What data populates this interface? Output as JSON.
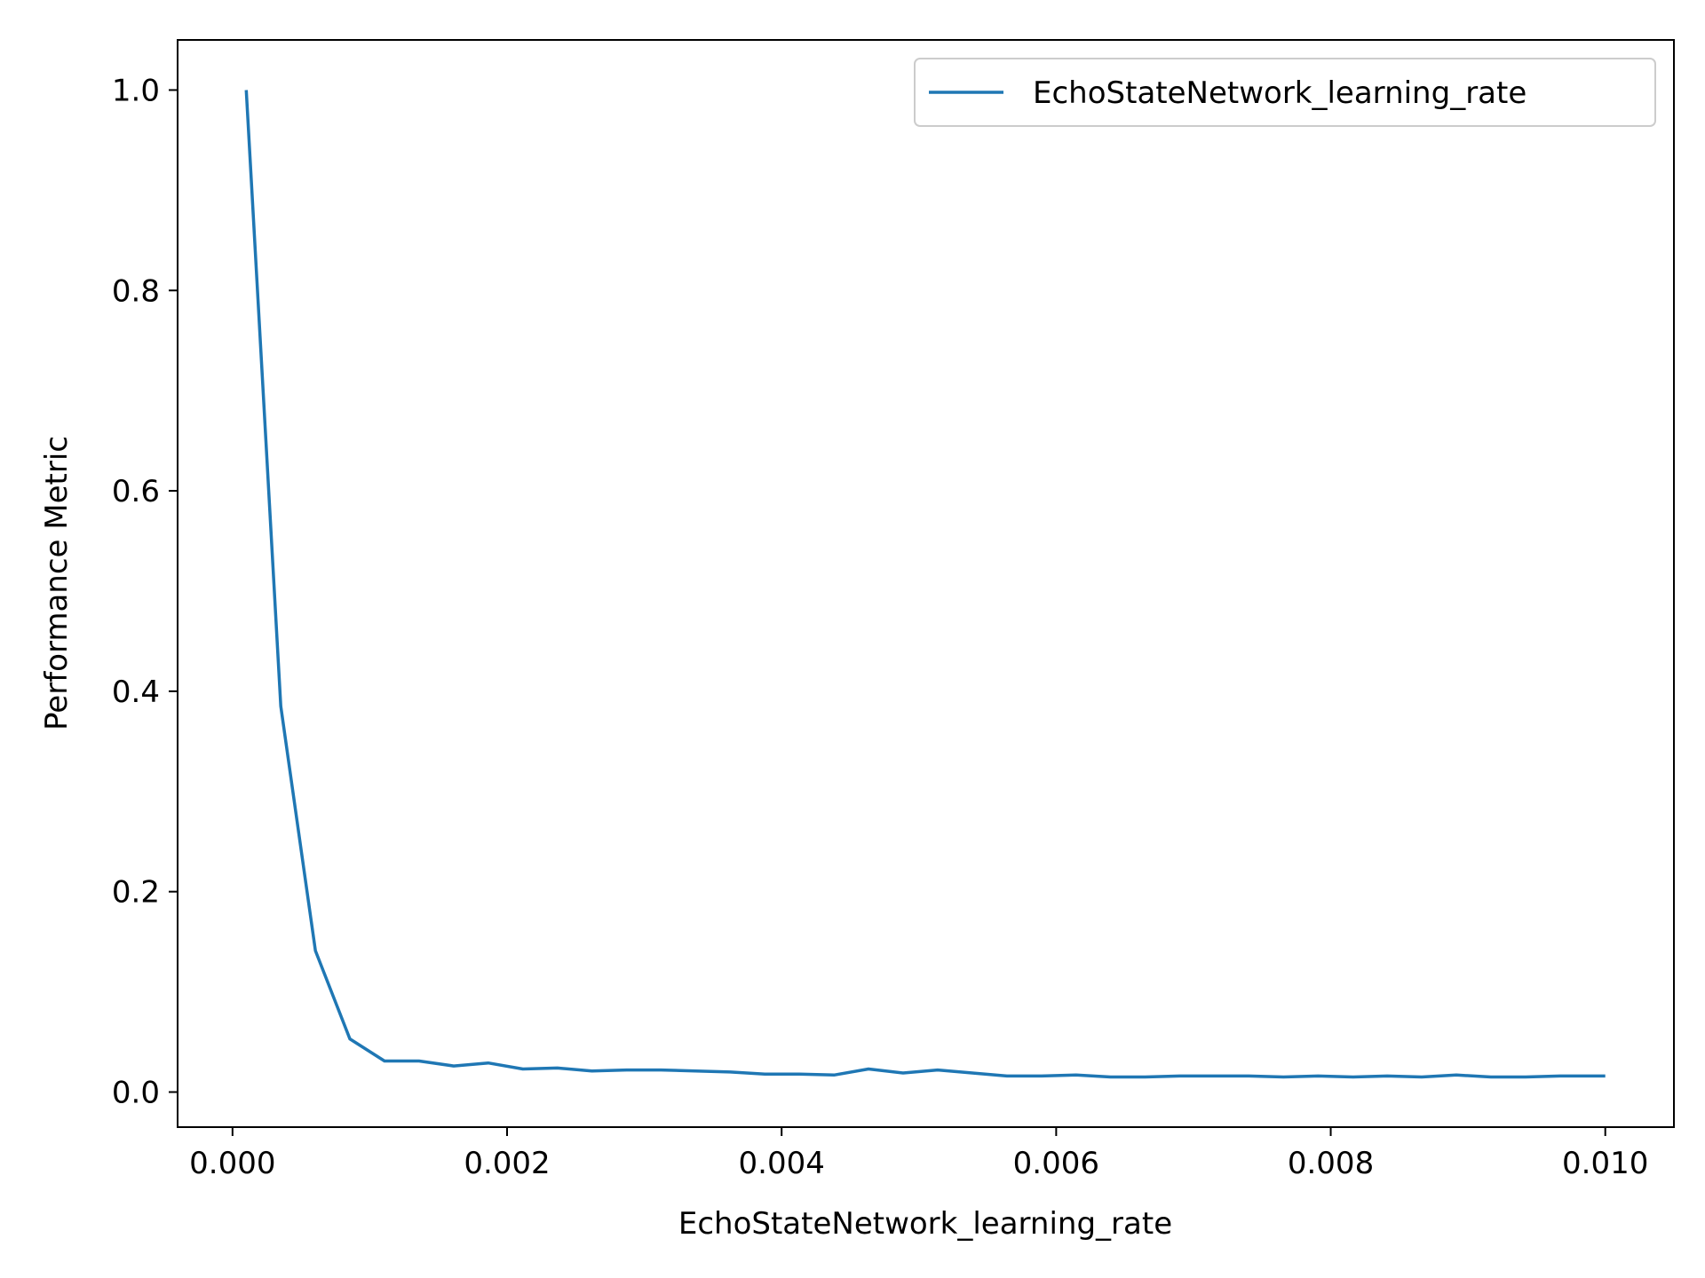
{
  "chart_data": {
    "type": "line",
    "title": "",
    "xlabel": "EchoStateNetwork_learning_rate",
    "ylabel": "Performance Metric",
    "xlim": [
      -0.0004,
      0.0105
    ],
    "ylim": [
      -0.035,
      1.05
    ],
    "xticks": [
      0.0,
      0.002,
      0.004,
      0.006,
      0.008,
      0.01
    ],
    "xtick_labels": [
      "0.000",
      "0.002",
      "0.004",
      "0.006",
      "0.008",
      "0.010"
    ],
    "yticks": [
      0.0,
      0.2,
      0.4,
      0.6,
      0.8,
      1.0
    ],
    "ytick_labels": [
      "0.0",
      "0.2",
      "0.4",
      "0.6",
      "0.8",
      "1.0"
    ],
    "grid": false,
    "legend_position": "top-right",
    "line_color": "#1f77b4",
    "series": [
      {
        "name": "EchoStateNetwork_learning_rate",
        "x": [
          0.0001,
          0.000352,
          0.000604,
          0.000855,
          0.001107,
          0.001359,
          0.001611,
          0.001863,
          0.002115,
          0.002367,
          0.002618,
          0.00287,
          0.003122,
          0.003374,
          0.003626,
          0.003878,
          0.00413,
          0.004382,
          0.004633,
          0.004885,
          0.005137,
          0.005389,
          0.005641,
          0.005893,
          0.006145,
          0.006396,
          0.006648,
          0.0069,
          0.007152,
          0.007404,
          0.007656,
          0.007908,
          0.00816,
          0.008411,
          0.008663,
          0.008915,
          0.009167,
          0.009419,
          0.009671,
          0.01
        ],
        "y": [
          1.0,
          0.385,
          0.141,
          0.053,
          0.031,
          0.031,
          0.026,
          0.029,
          0.023,
          0.024,
          0.021,
          0.022,
          0.022,
          0.021,
          0.02,
          0.018,
          0.018,
          0.017,
          0.023,
          0.019,
          0.022,
          0.019,
          0.016,
          0.016,
          0.017,
          0.015,
          0.015,
          0.016,
          0.016,
          0.016,
          0.015,
          0.016,
          0.015,
          0.016,
          0.015,
          0.017,
          0.015,
          0.015,
          0.016,
          0.016
        ]
      }
    ]
  }
}
